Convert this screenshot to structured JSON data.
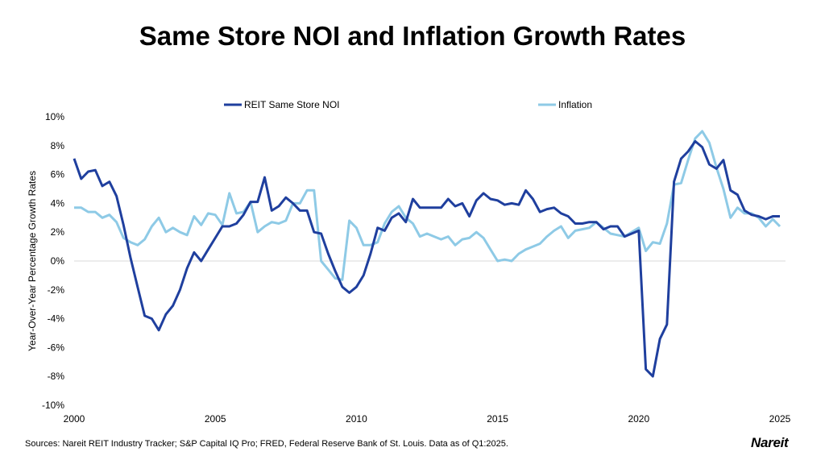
{
  "title": "Same Store NOI and Inflation Growth Rates",
  "source": "Sources: Nareit REIT Industry Tracker; S&P Capital IQ Pro; FRED, Federal Reserve Bank of St. Louis. Data as of Q1:2025.",
  "logo": "Nareit",
  "chart_data": {
    "type": "line",
    "title": "Same Store NOI and Inflation Growth Rates",
    "xlabel": "",
    "ylabel": "Year-Over-Year Percentage Growth Rates",
    "xlim": [
      2000,
      2025.25
    ],
    "ylim": [
      -10,
      10
    ],
    "x_ticks": [
      "2000",
      "2005",
      "2010",
      "2015",
      "2020",
      "2025"
    ],
    "y_ticks": [
      "10%",
      "8%",
      "6%",
      "4%",
      "2%",
      "0%",
      "-2%",
      "-4%",
      "-6%",
      "-8%",
      "-10%"
    ],
    "frequency": "quarterly",
    "x_start": "2000 Q1",
    "x_end": "2025 Q1",
    "grid": false,
    "zero_line": true,
    "legend_position": "top",
    "series": [
      {
        "name": "REIT Same Store NOI",
        "color": "#1f3f9e",
        "values": [
          7.1,
          5.7,
          6.2,
          6.3,
          5.2,
          5.5,
          4.5,
          2.5,
          0.2,
          -1.8,
          -3.8,
          -4.0,
          -4.8,
          -3.7,
          -3.1,
          -2.0,
          -0.5,
          0.6,
          0.0,
          0.8,
          1.6,
          2.4,
          2.4,
          2.6,
          3.2,
          4.1,
          4.1,
          5.8,
          3.5,
          3.8,
          4.4,
          4.0,
          3.5,
          3.5,
          2.0,
          1.9,
          0.5,
          -0.7,
          -1.8,
          -2.2,
          -1.8,
          -1.0,
          0.5,
          2.3,
          2.1,
          3.0,
          3.3,
          2.7,
          4.3,
          3.7,
          3.7,
          3.7,
          3.7,
          4.3,
          3.8,
          4.0,
          3.1,
          4.2,
          4.7,
          4.3,
          4.2,
          3.9,
          4.0,
          3.9,
          4.9,
          4.3,
          3.4,
          3.6,
          3.7,
          3.3,
          3.1,
          2.6,
          2.6,
          2.7,
          2.7,
          2.2,
          2.4,
          2.4,
          1.7,
          1.9,
          2.1,
          -7.5,
          -8.0,
          -5.4,
          -4.4,
          5.5,
          7.1,
          7.6,
          8.3,
          7.9,
          6.7,
          6.4,
          7.0,
          4.9,
          4.6,
          3.5,
          3.2,
          3.1,
          2.9,
          3.1,
          3.1
        ]
      },
      {
        "name": "Inflation",
        "color": "#8ecae6",
        "values": [
          3.7,
          3.7,
          3.4,
          3.4,
          3.0,
          3.2,
          2.7,
          1.6,
          1.3,
          1.1,
          1.5,
          2.4,
          3.0,
          2.0,
          2.3,
          2.0,
          1.8,
          3.1,
          2.5,
          3.3,
          3.2,
          2.5,
          4.7,
          3.3,
          3.4,
          4.1,
          2.0,
          2.4,
          2.7,
          2.6,
          2.8,
          4.0,
          4.0,
          4.9,
          4.9,
          0.0,
          -0.6,
          -1.2,
          -1.3,
          2.8,
          2.3,
          1.1,
          1.1,
          1.3,
          2.6,
          3.4,
          3.8,
          3.0,
          2.6,
          1.7,
          1.9,
          1.7,
          1.5,
          1.7,
          1.1,
          1.5,
          1.6,
          2.0,
          1.6,
          0.8,
          0.0,
          0.1,
          0.0,
          0.5,
          0.8,
          1.0,
          1.2,
          1.7,
          2.1,
          2.4,
          1.6,
          2.1,
          2.2,
          2.3,
          2.7,
          2.3,
          1.9,
          1.8,
          1.7,
          2.0,
          2.3,
          0.7,
          1.3,
          1.2,
          2.6,
          5.3,
          5.4,
          7.0,
          8.5,
          9.0,
          8.2,
          6.5,
          5.0,
          3.0,
          3.7,
          3.3,
          3.3,
          3.0,
          2.4,
          2.9,
          2.4
        ]
      }
    ]
  }
}
